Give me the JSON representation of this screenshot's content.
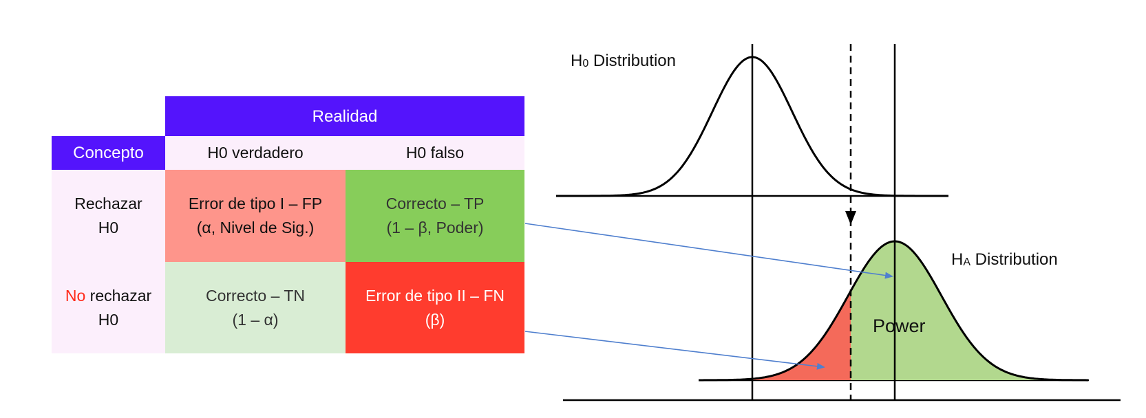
{
  "colors": {
    "header_bg": "#5414fc",
    "concept_bg": "#fceffc",
    "type1_bg": "#fe958b",
    "tp_bg": "#87cd5a",
    "tn_bg": "#d9edd4",
    "type2_bg": "#ff3c2e",
    "power_fill": "#b2d88e",
    "beta_fill": "#f46a5a",
    "arrow": "#4f7fce",
    "red_text": "#ff2a1a"
  },
  "table": {
    "realidad": "Realidad",
    "concepto": "Concepto",
    "col_h0_true": "H0 verdadero",
    "col_h0_false": "H0 falso",
    "row_reject": {
      "line1": "Rechazar",
      "line2": "H0"
    },
    "row_no_reject": {
      "no_word": "No",
      "rest": " rechazar",
      "line2": "H0"
    },
    "type1": {
      "line1": "Error de tipo I  – FP",
      "line2": "(α, Nivel de Sig.)"
    },
    "tp": {
      "line1": "Correcto – TP",
      "line2": "(1 – β, Poder)"
    },
    "tn": {
      "line1": "Correcto – TN",
      "line2": "(1 – α)"
    },
    "type2": {
      "line1": "Error de tipo II – FN",
      "line2": "(β)"
    }
  },
  "diagram": {
    "h0_label": {
      "main": "H",
      "sub": "0",
      "rest": " Distribution"
    },
    "ha_label": {
      "main": "H",
      "sub": "A",
      "rest": " Distribution"
    },
    "power_label": "Power"
  }
}
